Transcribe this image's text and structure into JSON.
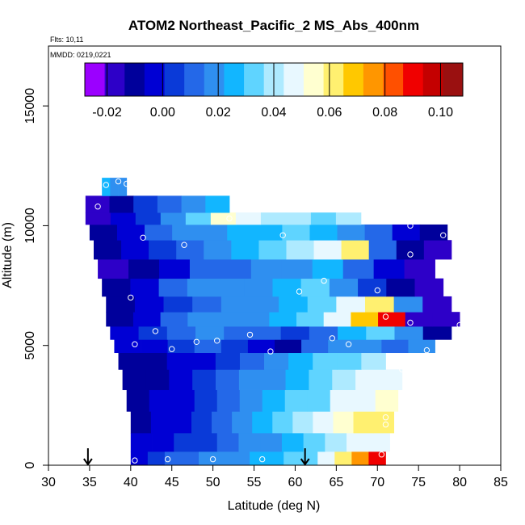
{
  "chart_data": {
    "type": "heatmap",
    "title": "ATOM2 Northeast_Pacific_2 MS_Abs_400nm",
    "annotations": [
      "Flts: 10,11",
      "MMDD: 0219,0221"
    ],
    "xlabel": "Latitude (deg N)",
    "ylabel": "Altitude (m)",
    "xlim": [
      30,
      85
    ],
    "ylim": [
      0,
      17500
    ],
    "x_ticks": [
      30,
      35,
      40,
      45,
      50,
      55,
      60,
      65,
      70,
      75,
      80,
      85
    ],
    "y_ticks": [
      0,
      5000,
      10000,
      15000
    ],
    "grid": false,
    "colorbar": {
      "placement": "top-inside",
      "range": [
        -0.028,
        0.108
      ],
      "ticks": [
        -0.02,
        0.0,
        0.02,
        0.04,
        0.06,
        0.08,
        0.1
      ],
      "tick_labels": [
        "-0.02",
        "0.00",
        "0.02",
        "0.04",
        "0.06",
        "0.08",
        "0.10"
      ],
      "colors": [
        "#9b00ff",
        "#2d00c8",
        "#00009b",
        "#0000d4",
        "#0a3ad8",
        "#2468e8",
        "#2f8ff0",
        "#12b6ff",
        "#5fd4ff",
        "#aeeaff",
        "#e8f8ff",
        "#ffffd0",
        "#fff070",
        "#ffc800",
        "#ff9600",
        "#ff5000",
        "#f00000",
        "#c40000",
        "#9a1010"
      ]
    },
    "markers": [
      {
        "type": "arrow",
        "x": 34.8,
        "y": 0
      },
      {
        "type": "arrow",
        "x": 61.2,
        "y": 0
      }
    ],
    "flight_levels": [
      {
        "alt": 250,
        "lat_min": 40.0,
        "lat_max": 71.0,
        "values": [
          0.0,
          0.004,
          0.008,
          0.012,
          0.016,
          0.02,
          0.022,
          0.024,
          0.026,
          0.03,
          0.036,
          0.046,
          0.062,
          0.078,
          0.092
        ]
      },
      {
        "alt": 900,
        "lat_min": 40.0,
        "lat_max": 71.5,
        "values": [
          -0.004,
          -0.002,
          0.002,
          0.006,
          0.012,
          0.018,
          0.022,
          0.026,
          0.032,
          0.04,
          0.046,
          0.05
        ]
      },
      {
        "alt": 1800,
        "lat_min": 40.0,
        "lat_max": 72.0,
        "values": [
          -0.008,
          -0.004,
          0.0,
          0.006,
          0.014,
          0.02,
          0.024,
          0.03,
          0.038,
          0.046,
          0.054,
          0.058,
          0.062
        ]
      },
      {
        "alt": 2700,
        "lat_min": 39.5,
        "lat_max": 72.5,
        "values": [
          -0.01,
          -0.006,
          -0.002,
          0.004,
          0.012,
          0.018,
          0.024,
          0.03,
          0.036,
          0.044,
          0.05,
          0.054
        ]
      },
      {
        "alt": 3600,
        "lat_min": 39.0,
        "lat_max": 73.0,
        "values": [
          -0.012,
          -0.008,
          -0.004,
          0.002,
          0.01,
          0.016,
          0.022,
          0.028,
          0.034,
          0.04,
          0.046,
          0.05
        ]
      },
      {
        "alt": 4400,
        "lat_min": 38.5,
        "lat_max": 71.0,
        "values": [
          -0.012,
          -0.01,
          -0.006,
          0.0,
          0.006,
          0.012,
          0.018,
          0.024,
          0.03,
          0.036,
          0.04
        ]
      },
      {
        "alt": 5000,
        "lat_min": 38.0,
        "lat_max": 77.0,
        "values": [
          -0.006,
          -0.002,
          0.004,
          0.01,
          0.004,
          -0.004,
          -0.012,
          0.008,
          0.022,
          0.018,
          0.012,
          0.016
        ]
      },
      {
        "alt": 5500,
        "lat_min": 37.5,
        "lat_max": 79.0,
        "values": [
          -0.004,
          0.004,
          0.012,
          0.018,
          0.014,
          0.008,
          0.002,
          0.012,
          0.024,
          0.03,
          0.02,
          -0.012
        ]
      },
      {
        "alt": 6100,
        "lat_min": 37.0,
        "lat_max": 80.0,
        "values": [
          -0.008,
          0.0,
          0.01,
          0.02,
          0.022,
          0.018,
          0.024,
          0.034,
          0.05,
          0.07,
          0.09,
          -0.018,
          -0.02
        ]
      },
      {
        "alt": 6700,
        "lat_min": 37.0,
        "lat_max": 79.0,
        "values": [
          -0.012,
          -0.004,
          0.006,
          0.014,
          0.018,
          0.02,
          0.026,
          0.034,
          0.048,
          0.06,
          0.02,
          -0.016
        ]
      },
      {
        "alt": 7400,
        "lat_min": 36.5,
        "lat_max": 78.0,
        "values": [
          -0.01,
          -0.002,
          0.008,
          0.016,
          0.02,
          0.022,
          0.026,
          0.03,
          0.02,
          0.004,
          -0.01,
          -0.014
        ]
      },
      {
        "alt": 8200,
        "lat_min": 36.0,
        "lat_max": 77.0,
        "values": [
          -0.014,
          -0.008,
          0.0,
          0.008,
          0.012,
          0.016,
          0.02,
          0.024,
          0.012,
          -0.004,
          -0.014
        ]
      },
      {
        "alt": 9000,
        "lat_min": 35.5,
        "lat_max": 79.0,
        "values": [
          -0.012,
          -0.006,
          0.004,
          0.014,
          0.02,
          0.026,
          0.032,
          0.04,
          0.05,
          0.06,
          0.01,
          -0.012,
          -0.014
        ]
      },
      {
        "alt": 9800,
        "lat_min": 35.0,
        "lat_max": 78.5,
        "values": [
          -0.01,
          -0.002,
          0.008,
          0.016,
          0.02,
          0.024,
          0.028,
          0.032,
          0.028,
          0.02,
          0.014,
          -0.004,
          -0.01
        ]
      },
      {
        "alt": 10300,
        "lat_min": 34.5,
        "lat_max": 68.0,
        "values": [
          -0.014,
          -0.006,
          0.004,
          0.018,
          0.034,
          0.056,
          0.05,
          0.04,
          0.038,
          0.036,
          0.04
        ]
      },
      {
        "alt": 10800,
        "lat_min": 34.5,
        "lat_max": 52.0,
        "values": [
          -0.016,
          -0.008,
          0.004,
          0.012,
          0.02,
          0.024
        ]
      },
      {
        "alt": 11700,
        "lat_min": 36.5,
        "lat_max": 39.5,
        "values": [
          0.024,
          0.02,
          0.016
        ]
      }
    ],
    "sample_points": [
      {
        "x": 37.0,
        "y": 11700
      },
      {
        "x": 38.5,
        "y": 11850
      },
      {
        "x": 39.5,
        "y": 11750
      },
      {
        "x": 36.0,
        "y": 10800
      },
      {
        "x": 52.0,
        "y": 10300
      },
      {
        "x": 58.5,
        "y": 9600
      },
      {
        "x": 41.5,
        "y": 9500
      },
      {
        "x": 46.5,
        "y": 9200
      },
      {
        "x": 74.0,
        "y": 10000
      },
      {
        "x": 78.0,
        "y": 9600
      },
      {
        "x": 74.0,
        "y": 8800
      },
      {
        "x": 63.5,
        "y": 7700
      },
      {
        "x": 60.5,
        "y": 7250
      },
      {
        "x": 70.0,
        "y": 7300
      },
      {
        "x": 40.0,
        "y": 7000
      },
      {
        "x": 71.0,
        "y": 6200
      },
      {
        "x": 74.0,
        "y": 5950
      },
      {
        "x": 80.0,
        "y": 5850
      },
      {
        "x": 43.0,
        "y": 5600
      },
      {
        "x": 54.5,
        "y": 5450
      },
      {
        "x": 64.5,
        "y": 5300
      },
      {
        "x": 50.5,
        "y": 5200
      },
      {
        "x": 48.0,
        "y": 5150
      },
      {
        "x": 66.5,
        "y": 5050
      },
      {
        "x": 40.5,
        "y": 5050
      },
      {
        "x": 45.0,
        "y": 4850
      },
      {
        "x": 57.0,
        "y": 4750
      },
      {
        "x": 76.0,
        "y": 4800
      },
      {
        "x": 71.5,
        "y": 4450
      },
      {
        "x": 73.0,
        "y": 4000
      },
      {
        "x": 71.0,
        "y": 2000
      },
      {
        "x": 71.0,
        "y": 1700
      },
      {
        "x": 70.5,
        "y": 450
      },
      {
        "x": 40.5,
        "y": 200
      },
      {
        "x": 44.5,
        "y": 250
      },
      {
        "x": 50.0,
        "y": 250
      },
      {
        "x": 56.0,
        "y": 250
      }
    ]
  }
}
